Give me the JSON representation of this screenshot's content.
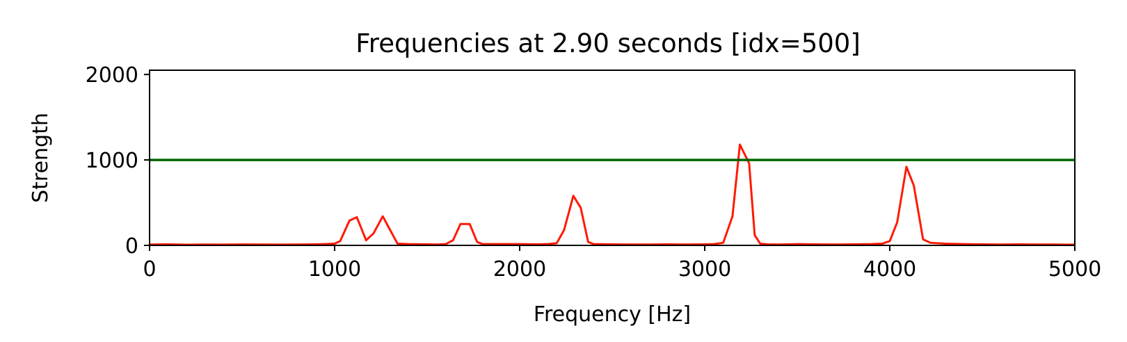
{
  "chart_data": {
    "type": "line",
    "title": "Frequencies at 2.90 seconds [idx=500]",
    "xlabel": "Frequency [Hz]",
    "ylabel": "Strength",
    "xlim": [
      0,
      5000
    ],
    "ylim": [
      0,
      2050
    ],
    "xticks": [
      0,
      1000,
      2000,
      3000,
      4000,
      5000
    ],
    "yticks": [
      0,
      1000,
      2000
    ],
    "grid": false,
    "series": [
      {
        "color": "#ff1a00",
        "x": [
          0,
          100,
          200,
          300,
          400,
          500,
          600,
          700,
          800,
          900,
          950,
          1000,
          1030,
          1080,
          1120,
          1170,
          1210,
          1260,
          1300,
          1340,
          1400,
          1500,
          1560,
          1600,
          1640,
          1680,
          1730,
          1770,
          1800,
          1900,
          2000,
          2100,
          2150,
          2200,
          2240,
          2290,
          2330,
          2370,
          2400,
          2500,
          2600,
          2700,
          2800,
          2900,
          3000,
          3050,
          3100,
          3150,
          3190,
          3240,
          3270,
          3300,
          3340,
          3400,
          3500,
          3600,
          3700,
          3800,
          3900,
          3960,
          4000,
          4040,
          4090,
          4130,
          4180,
          4220,
          4300,
          4400,
          4500,
          4600,
          4700,
          4800,
          4900,
          5000
        ],
        "y": [
          10,
          12,
          8,
          10,
          9,
          11,
          10,
          9,
          10,
          12,
          15,
          20,
          50,
          290,
          330,
          60,
          140,
          340,
          180,
          20,
          15,
          12,
          10,
          15,
          60,
          250,
          250,
          40,
          15,
          15,
          15,
          12,
          15,
          25,
          180,
          580,
          440,
          40,
          15,
          12,
          10,
          10,
          12,
          10,
          12,
          15,
          30,
          340,
          1180,
          960,
          120,
          20,
          12,
          10,
          15,
          12,
          10,
          12,
          15,
          20,
          50,
          270,
          920,
          700,
          70,
          30,
          20,
          15,
          12,
          10,
          12,
          10,
          10,
          8
        ]
      },
      {
        "color": "#006400",
        "x": [
          0,
          5000
        ],
        "y": [
          1000,
          1000
        ]
      }
    ]
  }
}
